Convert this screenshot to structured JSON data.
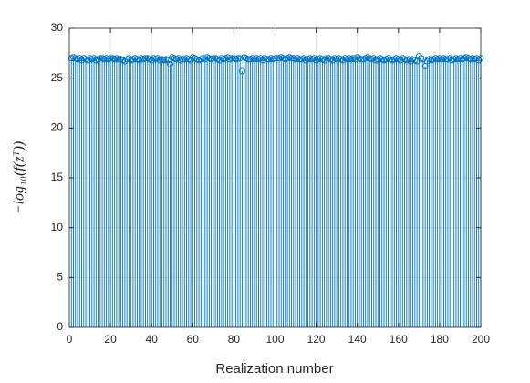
{
  "chart_data": {
    "type": "stem",
    "xlabel": "Realization number",
    "ylabel": "−log₁₀(f(zᵀ))",
    "x": [
      1,
      2,
      3,
      4,
      5,
      6,
      7,
      8,
      9,
      10,
      11,
      12,
      13,
      14,
      15,
      16,
      17,
      18,
      19,
      20,
      21,
      22,
      23,
      24,
      25,
      26,
      27,
      28,
      29,
      30,
      31,
      32,
      33,
      34,
      35,
      36,
      37,
      38,
      39,
      40,
      41,
      42,
      43,
      44,
      45,
      46,
      47,
      48,
      49,
      50,
      51,
      52,
      53,
      54,
      55,
      56,
      57,
      58,
      59,
      60,
      61,
      62,
      63,
      64,
      65,
      66,
      67,
      68,
      69,
      70,
      71,
      72,
      73,
      74,
      75,
      76,
      77,
      78,
      79,
      80,
      81,
      82,
      83,
      84,
      85,
      86,
      87,
      88,
      89,
      90,
      91,
      92,
      93,
      94,
      95,
      96,
      97,
      98,
      99,
      100,
      101,
      102,
      103,
      104,
      105,
      106,
      107,
      108,
      109,
      110,
      111,
      112,
      113,
      114,
      115,
      116,
      117,
      118,
      119,
      120,
      121,
      122,
      123,
      124,
      125,
      126,
      127,
      128,
      129,
      130,
      131,
      132,
      133,
      134,
      135,
      136,
      137,
      138,
      139,
      140,
      141,
      142,
      143,
      144,
      145,
      146,
      147,
      148,
      149,
      150,
      151,
      152,
      153,
      154,
      155,
      156,
      157,
      158,
      159,
      160,
      161,
      162,
      163,
      164,
      165,
      166,
      167,
      168,
      169,
      170,
      171,
      172,
      173,
      174,
      175,
      176,
      177,
      178,
      179,
      180,
      181,
      182,
      183,
      184,
      185,
      186,
      187,
      188,
      189,
      190,
      191,
      192,
      193,
      194,
      195,
      196,
      197,
      198,
      199,
      200
    ],
    "values": [
      27.0,
      27.1,
      27.0,
      26.9,
      27.0,
      26.8,
      27.0,
      26.9,
      26.8,
      27.0,
      26.9,
      27.0,
      26.8,
      26.9,
      27.0,
      27.0,
      26.9,
      27.0,
      26.9,
      27.0,
      27.0,
      26.9,
      27.0,
      26.9,
      26.9,
      26.8,
      26.7,
      26.9,
      27.0,
      26.8,
      26.9,
      27.0,
      26.9,
      26.8,
      27.0,
      26.9,
      27.0,
      27.0,
      26.9,
      26.8,
      27.0,
      26.9,
      27.0,
      26.8,
      26.9,
      26.8,
      26.9,
      26.8,
      26.4,
      27.1,
      27.0,
      26.9,
      27.0,
      26.8,
      26.9,
      26.9,
      27.0,
      26.9,
      26.8,
      27.1,
      27.0,
      26.9,
      26.8,
      26.9,
      27.0,
      26.9,
      27.1,
      27.0,
      26.9,
      27.0,
      27.0,
      26.9,
      26.8,
      27.0,
      26.9,
      27.0,
      27.1,
      26.9,
      27.0,
      27.0,
      26.9,
      27.0,
      27.0,
      25.7,
      27.1,
      27.0,
      26.9,
      26.9,
      27.0,
      26.9,
      27.0,
      26.9,
      27.0,
      26.8,
      27.0,
      26.9,
      26.9,
      27.0,
      26.9,
      27.0,
      27.0,
      27.0,
      27.1,
      27.0,
      26.9,
      27.0,
      27.1,
      27.0,
      27.0,
      26.9,
      27.0,
      26.9,
      26.9,
      27.0,
      26.8,
      26.9,
      27.0,
      26.9,
      27.0,
      26.8,
      26.9,
      27.0,
      26.9,
      26.8,
      27.0,
      27.0,
      26.9,
      26.8,
      27.0,
      26.9,
      27.0,
      26.9,
      26.8,
      27.0,
      26.9,
      27.0,
      26.9,
      27.0,
      26.9,
      27.1,
      27.0,
      26.9,
      26.9,
      27.0,
      27.1,
      27.0,
      26.9,
      27.0,
      26.8,
      26.9,
      27.0,
      26.9,
      26.8,
      26.9,
      27.0,
      26.9,
      26.8,
      26.9,
      27.0,
      26.9,
      26.8,
      27.0,
      26.9,
      26.8,
      26.9,
      26.7,
      26.9,
      26.8,
      26.7,
      27.2,
      27.0,
      26.9,
      26.2,
      26.7,
      26.9,
      26.8,
      26.9,
      27.0,
      26.9,
      27.0,
      26.9,
      27.0,
      26.9,
      26.9,
      27.0,
      26.8,
      26.9,
      27.0,
      26.9,
      27.0,
      26.9,
      27.0,
      27.1,
      27.0,
      26.9,
      27.0,
      26.9,
      27.0,
      26.8,
      27.0
    ],
    "color": "#0072bd",
    "xlim": [
      0,
      200
    ],
    "xticks": [
      0,
      20,
      40,
      60,
      80,
      100,
      120,
      140,
      160,
      180,
      200
    ],
    "ylim": [
      0,
      30
    ],
    "yticks": [
      0,
      5,
      10,
      15,
      20,
      25,
      30
    ],
    "grid": true
  }
}
